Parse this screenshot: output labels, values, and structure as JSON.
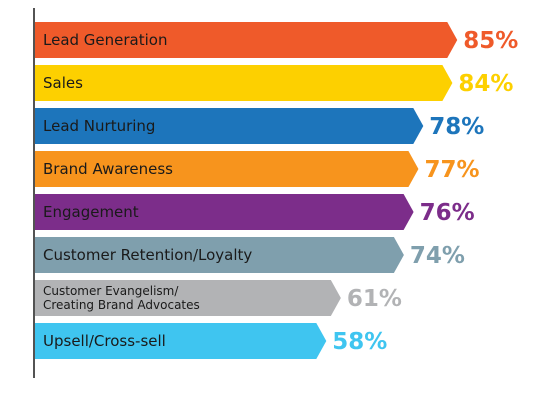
{
  "chart_data": {
    "type": "bar",
    "orientation": "horizontal",
    "title": "",
    "xlabel": "",
    "ylabel": "",
    "grid": false,
    "legend": "none",
    "xlim": [
      0,
      100
    ],
    "categories": [
      "Lead Generation",
      "Sales",
      "Lead Nurturing",
      "Brand Awareness",
      "Engagement",
      "Customer Retention/Loyalty",
      "Customer Evangelism/ Creating Brand Advocates",
      "Upsell/Cross-sell"
    ],
    "category_lines": [
      [
        "Lead Generation"
      ],
      [
        "Sales"
      ],
      [
        "Lead Nurturing"
      ],
      [
        "Brand Awareness"
      ],
      [
        "Engagement"
      ],
      [
        "Customer Retention/Loyalty"
      ],
      [
        "Customer Evangelism/",
        "Creating Brand Advocates"
      ],
      [
        "Upsell/Cross-sell"
      ]
    ],
    "values": [
      85,
      84,
      78,
      77,
      76,
      74,
      61,
      58
    ],
    "value_labels": [
      "85%",
      "84%",
      "78%",
      "77%",
      "76%",
      "74%",
      "61%",
      "58%"
    ],
    "colors": [
      "#ef5a2a",
      "#fdd000",
      "#1d75bb",
      "#f7941d",
      "#7c2d8a",
      "#7f9fad",
      "#b2b3b5",
      "#3fc5f0"
    ]
  }
}
